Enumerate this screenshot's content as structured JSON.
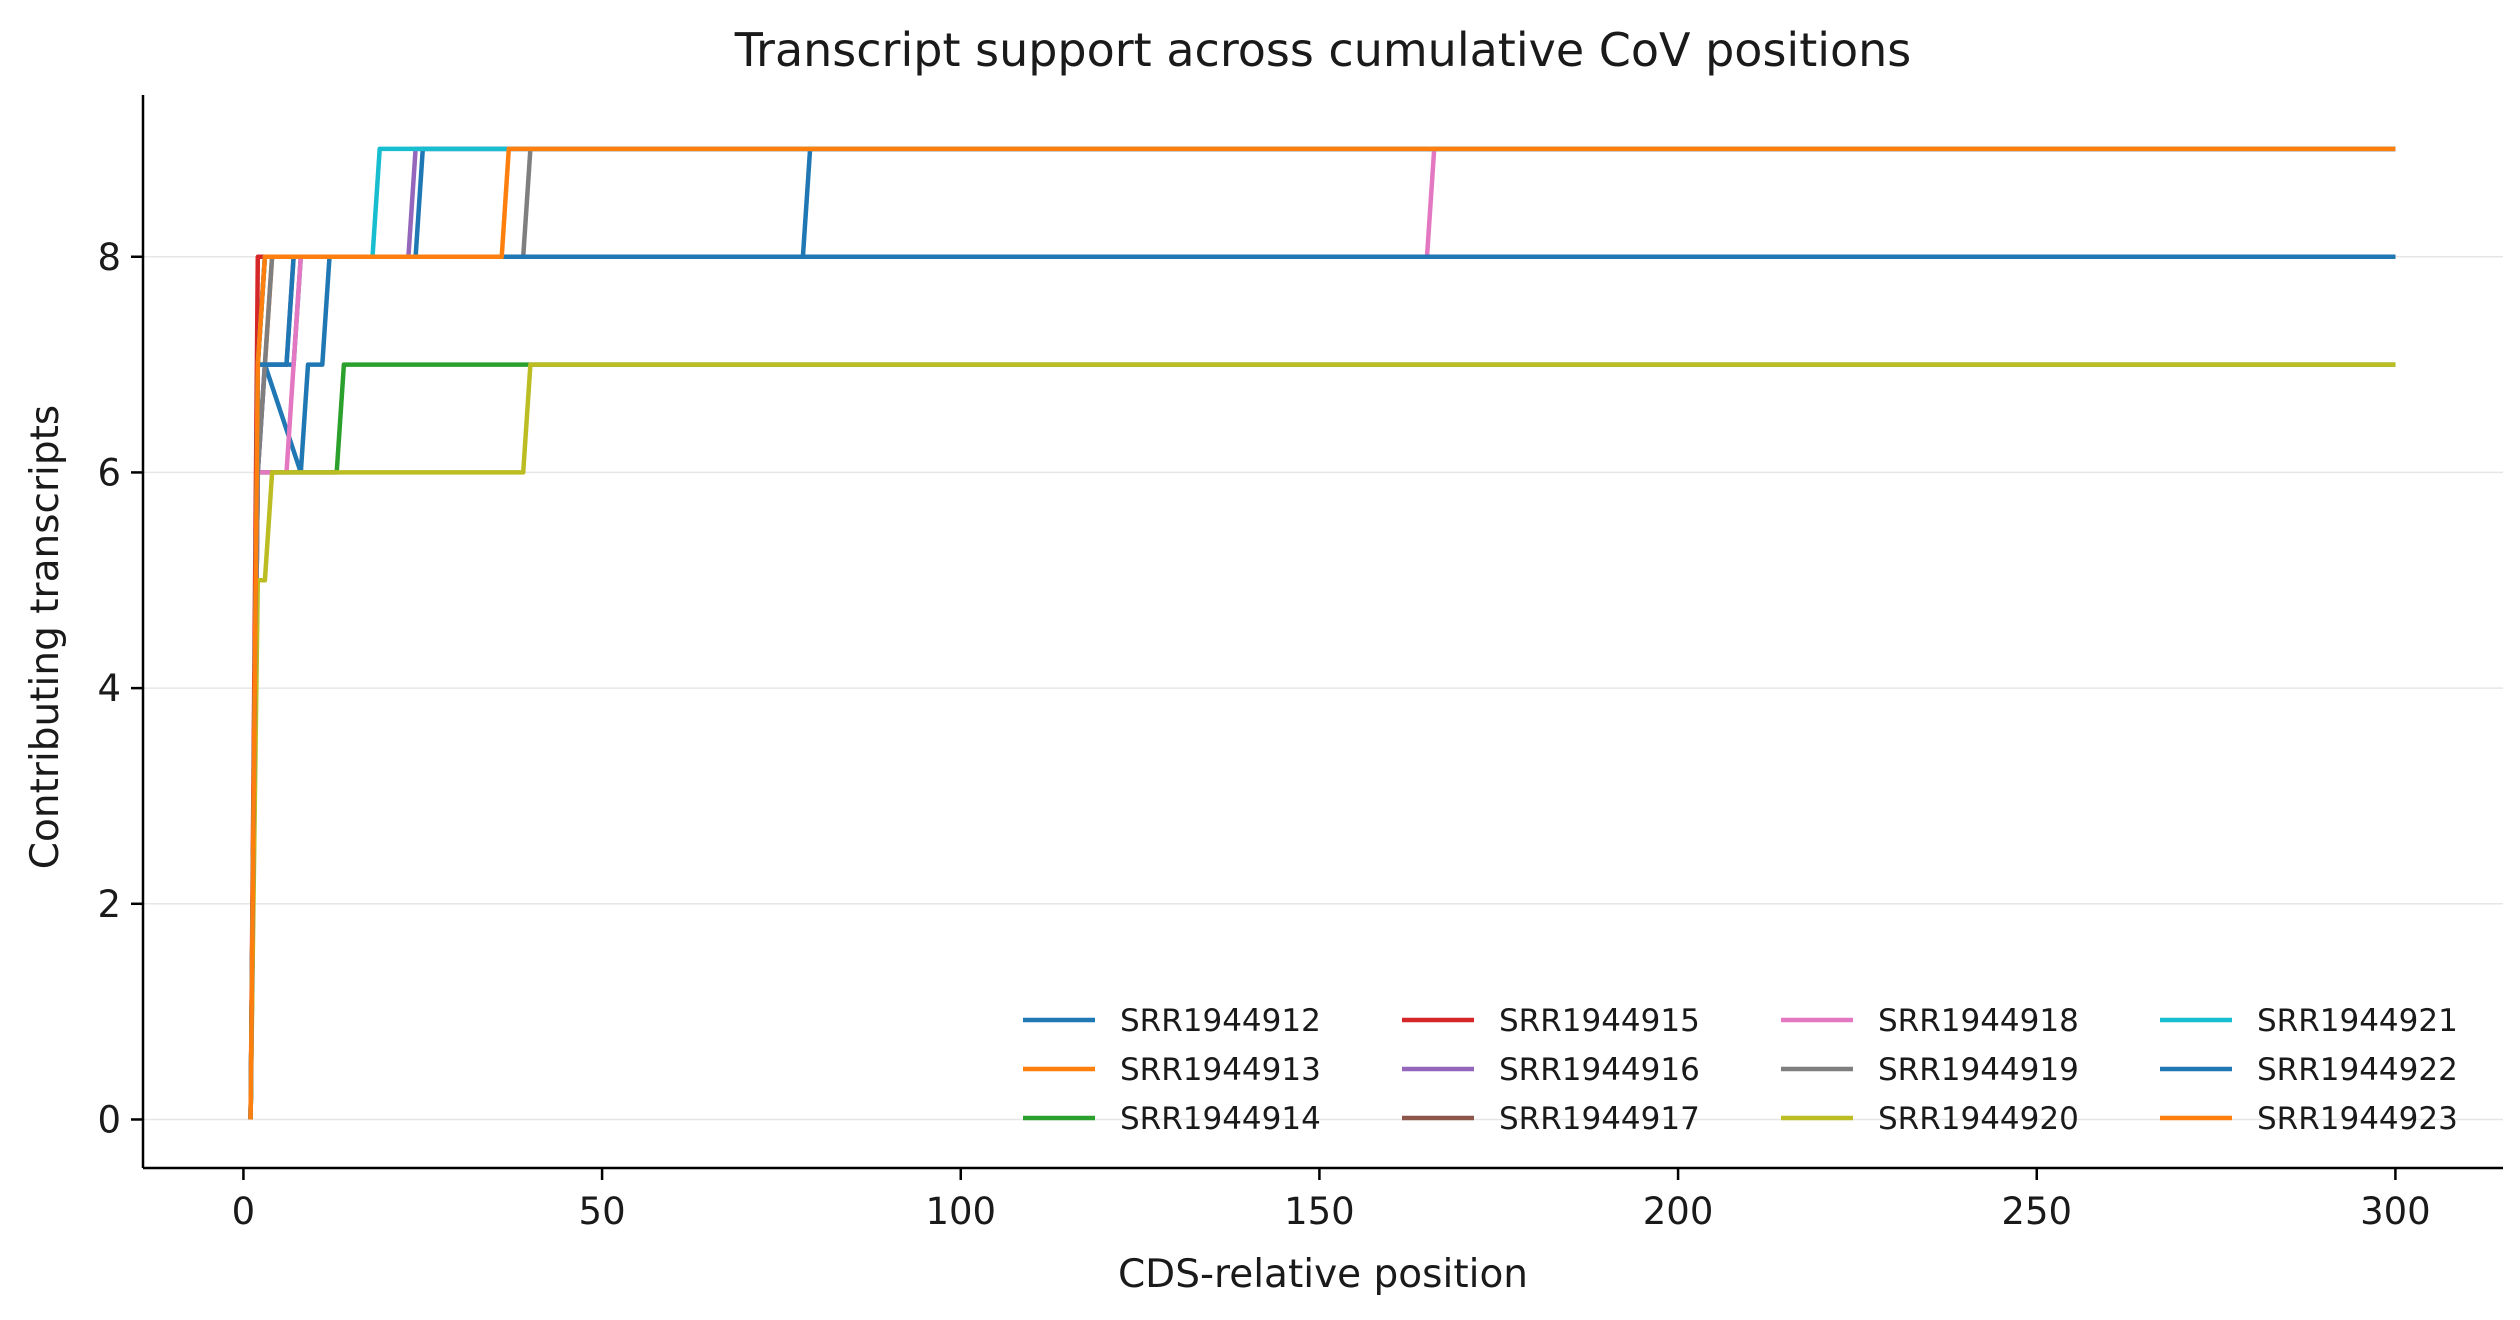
{
  "chart_data": {
    "type": "line",
    "title": "Transcript support across cumulative CoV positions",
    "xlabel": "CDS-relative position",
    "ylabel": "Contributing transcripts",
    "xlim": [
      -14,
      315
    ],
    "ylim": [
      -0.45,
      9.5
    ],
    "xticks": [
      0,
      50,
      100,
      150,
      200,
      250,
      300
    ],
    "yticks": [
      0,
      2,
      4,
      6,
      8
    ],
    "grid": "y",
    "legend_position": "lower-right",
    "series": [
      {
        "name": "SRR1944912",
        "color": "#1f77b4",
        "x": [
          1,
          2,
          3,
          7,
          8,
          300
        ],
        "y": [
          0,
          7,
          7,
          7,
          8,
          8
        ]
      },
      {
        "name": "SRR1944913",
        "color": "#ff7f0e",
        "x": [
          1,
          2,
          3,
          4,
          300
        ],
        "y": [
          0,
          7,
          7,
          8,
          8
        ]
      },
      {
        "name": "SRR1944914",
        "color": "#2ca02c",
        "x": [
          1,
          2,
          3,
          300
        ],
        "y": [
          0,
          7,
          8,
          8
        ]
      },
      {
        "name": "SRR1944915",
        "color": "#d62728",
        "x": [
          1,
          2,
          300
        ],
        "y": [
          0,
          8,
          8
        ]
      },
      {
        "name": "SRR1944916",
        "color": "#9467bd",
        "x": [
          1,
          2,
          3,
          6,
          7,
          23,
          24,
          300
        ],
        "y": [
          0,
          6,
          7,
          7,
          8,
          8,
          9,
          9
        ]
      },
      {
        "name": "SRR1944917",
        "color": "#8c564b",
        "x": [
          1,
          2,
          3,
          300
        ],
        "y": [
          0,
          7,
          8,
          8
        ]
      },
      {
        "name": "SRR1944918",
        "color": "#e377c2",
        "x": [
          1,
          2,
          3,
          6,
          7,
          8,
          165,
          166,
          300
        ],
        "y": [
          0,
          6,
          6,
          6,
          7,
          8,
          8,
          9,
          9
        ]
      },
      {
        "name": "SRR1944919",
        "color": "#7f7f7f",
        "x": [
          1,
          2,
          3,
          4,
          39,
          40,
          300
        ],
        "y": [
          0,
          6,
          7,
          8,
          8,
          9,
          9
        ]
      },
      {
        "name": "SRR1944920",
        "color": "#bcbd22",
        "x": [
          1,
          2,
          3,
          4,
          39,
          40,
          300
        ],
        "y": [
          0,
          5,
          5,
          6,
          6,
          7,
          7
        ]
      },
      {
        "name": "SRR1944921",
        "color": "#17becf",
        "x": [
          1,
          2,
          3,
          18,
          19,
          300
        ],
        "y": [
          0,
          7,
          8,
          8,
          9,
          9
        ]
      },
      {
        "name": "SRR1944922",
        "color": "#1f77b4",
        "x": [
          1,
          2,
          3,
          6,
          7,
          300
        ],
        "y": [
          0,
          7,
          7,
          7,
          8,
          8
        ]
      },
      {
        "name": "SRR1944923",
        "color": "#ff7f0e",
        "x": [
          1,
          2,
          3,
          36,
          37,
          300
        ],
        "y": [
          0,
          7,
          8,
          8,
          9,
          9
        ]
      }
    ],
    "extra_segments": [
      {
        "series": "SRR1944912",
        "x": [
          8,
          24,
          25,
          300
        ],
        "y": [
          8,
          8,
          9,
          9
        ]
      },
      {
        "series": "SRR1944914",
        "x": [
          1,
          2,
          3,
          13,
          14,
          40,
          300
        ],
        "y": [
          0,
          6,
          6,
          6,
          7,
          7,
          7
        ]
      },
      {
        "series": "SRR1944922",
        "x": [
          1,
          2,
          3,
          8,
          9,
          11,
          12,
          78,
          79,
          300
        ],
        "y": [
          0,
          6,
          7,
          6,
          7,
          7,
          8,
          8,
          9,
          9
        ]
      },
      {
        "series": "SRR1944917",
        "x": [
          165,
          300
        ],
        "y": [
          8,
          8
        ]
      }
    ]
  }
}
